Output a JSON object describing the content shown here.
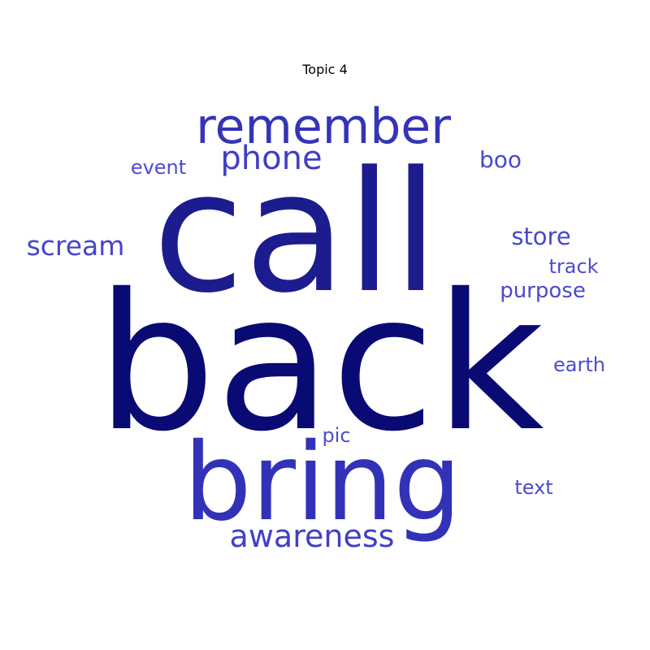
{
  "chart_data": {
    "type": "wordcloud",
    "title": "Topic 4",
    "words": [
      {
        "text": "back",
        "weight": 1.0,
        "color": "#0a0a74"
      },
      {
        "text": "call",
        "weight": 0.8,
        "color": "#1c1c8e"
      },
      {
        "text": "bring",
        "weight": 0.55,
        "color": "#3232b9"
      },
      {
        "text": "remember",
        "weight": 0.35,
        "color": "#3434b8"
      },
      {
        "text": "phone",
        "weight": 0.25,
        "color": "#3f3fc4"
      },
      {
        "text": "awareness",
        "weight": 0.22,
        "color": "#4040c6"
      },
      {
        "text": "scream",
        "weight": 0.18,
        "color": "#4545c9"
      },
      {
        "text": "store",
        "weight": 0.16,
        "color": "#4747cb"
      },
      {
        "text": "boo",
        "weight": 0.15,
        "color": "#4949cc"
      },
      {
        "text": "purpose",
        "weight": 0.14,
        "color": "#4a4acd"
      },
      {
        "text": "event",
        "weight": 0.12,
        "color": "#4c4ccf"
      },
      {
        "text": "track",
        "weight": 0.12,
        "color": "#4c4ccf"
      },
      {
        "text": "earth",
        "weight": 0.12,
        "color": "#4c4ccf"
      },
      {
        "text": "text",
        "weight": 0.12,
        "color": "#4c4ccf"
      },
      {
        "text": "pic",
        "weight": 0.11,
        "color": "#4d4dd0"
      }
    ]
  }
}
